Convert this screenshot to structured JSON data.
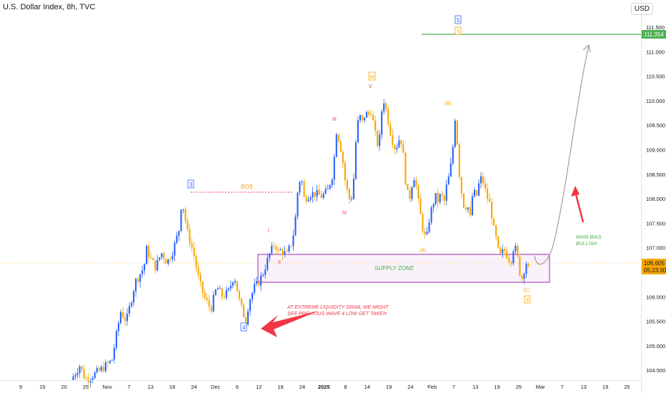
{
  "header": {
    "title": "U.S. Dollar Index, 8h, TVC",
    "currency": "USD"
  },
  "chart_data": {
    "type": "candlestick",
    "y_ticks": [
      "111.500",
      "111.000",
      "110.500",
      "110.000",
      "109.500",
      "109.000",
      "108.500",
      "108.000",
      "107.500",
      "107.000",
      "106.500",
      "106.000",
      "105.500",
      "105.000",
      "104.500"
    ],
    "ylim": [
      104.25,
      111.75
    ],
    "x_ticks": [
      "9",
      "15",
      "20",
      "25",
      "Nov",
      "7",
      "13",
      "18",
      "24",
      "Dec",
      "6",
      "12",
      "18",
      "24",
      "2025",
      "8",
      "14",
      "19",
      "24",
      "Feb",
      "7",
      "13",
      "19",
      "25",
      "Mar",
      "7",
      "13",
      "19",
      "25"
    ],
    "price_label": {
      "value": "106.605",
      "time": "05:23:30",
      "color": "#f7a600"
    },
    "target_label": {
      "value": "111.354",
      "color": "#4caf50"
    },
    "annotations": {
      "bos": "BOS",
      "supply_zone": "SUPPLY ZONE",
      "main_bias_line1": "MAIN BIAS",
      "main_bias_line2": "BULLISH",
      "liquidity_line1": "AT EXTREME LIQUIDITY GRAB, WE MIGHT",
      "liquidity_line2": "SEE PREVIOUS WAVE 4 LOW GET TAKEN"
    },
    "wave_labels": {
      "w3": "3",
      "w4": "4",
      "w5": "5",
      "Y": "Y",
      "W": "W",
      "X": "X",
      "i": "I",
      "ii": "II",
      "iii": "III",
      "iv": "IV",
      "v": "V",
      "A": "(A)",
      "B": "(B)",
      "C": "(C)"
    },
    "path": [
      [
        0,
        104.3
      ],
      [
        3,
        104.6
      ],
      [
        5,
        104.3
      ],
      [
        10,
        104.5
      ],
      [
        14,
        104.7
      ],
      [
        17,
        105.7
      ],
      [
        19,
        105.5
      ],
      [
        22,
        106.3
      ],
      [
        25,
        106.6
      ],
      [
        26,
        107.0
      ],
      [
        27,
        106.8
      ],
      [
        29,
        106.6
      ],
      [
        31,
        106.9
      ],
      [
        33,
        106.7
      ],
      [
        35,
        106.95
      ],
      [
        37,
        107.35
      ],
      [
        38,
        108.0
      ],
      [
        40,
        107.3
      ],
      [
        42,
        106.9
      ],
      [
        44,
        106.3
      ],
      [
        46,
        105.95
      ],
      [
        48,
        105.75
      ],
      [
        50,
        106.2
      ],
      [
        52,
        106.0
      ],
      [
        54,
        106.1
      ],
      [
        56,
        106.45
      ],
      [
        58,
        105.85
      ],
      [
        60,
        105.5
      ],
      [
        61,
        105.9
      ],
      [
        63,
        106.2
      ],
      [
        64,
        106.25
      ],
      [
        66,
        106.5
      ],
      [
        68,
        106.85
      ],
      [
        70,
        107.1
      ],
      [
        71,
        106.9
      ],
      [
        72,
        106.95
      ],
      [
        74,
        106.85
      ],
      [
        76,
        107.15
      ],
      [
        77,
        107.6
      ],
      [
        78,
        108.3
      ],
      [
        79,
        108.45
      ],
      [
        80,
        108.0
      ],
      [
        82,
        108.1
      ],
      [
        84,
        108.1
      ],
      [
        86,
        108.05
      ],
      [
        88,
        108.15
      ],
      [
        90,
        108.55
      ],
      [
        91,
        109.4
      ],
      [
        92,
        109.2
      ],
      [
        93,
        108.9
      ],
      [
        94,
        108.4
      ],
      [
        95,
        108.1
      ],
      [
        96,
        107.9
      ],
      [
        97,
        108.4
      ],
      [
        98,
        109.4
      ],
      [
        99,
        109.7
      ],
      [
        100,
        109.55
      ],
      [
        101,
        109.75
      ],
      [
        102,
        109.7
      ],
      [
        103,
        109.8
      ],
      [
        104,
        109.45
      ],
      [
        105,
        109.1
      ],
      [
        106,
        109.25
      ],
      [
        107,
        110.1
      ],
      [
        108,
        109.85
      ],
      [
        109,
        109.55
      ],
      [
        110,
        109.25
      ],
      [
        111,
        109.05
      ],
      [
        112,
        109.1
      ],
      [
        113,
        109.3
      ],
      [
        114,
        108.9
      ],
      [
        115,
        108.25
      ],
      [
        116,
        107.95
      ],
      [
        117,
        108.3
      ],
      [
        118,
        108.5
      ],
      [
        119,
        108.0
      ],
      [
        120,
        107.65
      ],
      [
        121,
        107.3
      ],
      [
        122,
        107.15
      ],
      [
        123,
        107.6
      ],
      [
        124,
        107.85
      ],
      [
        125,
        108.05
      ],
      [
        126,
        107.95
      ],
      [
        127,
        108.1
      ],
      [
        128,
        107.9
      ],
      [
        129,
        108.3
      ],
      [
        130,
        108.5
      ],
      [
        131,
        109.0
      ],
      [
        132,
        109.8
      ],
      [
        133,
        108.65
      ],
      [
        134,
        108.15
      ],
      [
        135,
        107.8
      ],
      [
        136,
        107.9
      ],
      [
        137,
        107.6
      ],
      [
        138,
        108.2
      ],
      [
        139,
        108.0
      ],
      [
        140,
        108.3
      ],
      [
        141,
        108.45
      ],
      [
        142,
        108.2
      ],
      [
        143,
        108.0
      ],
      [
        144,
        107.85
      ],
      [
        145,
        107.4
      ],
      [
        146,
        107.15
      ],
      [
        147,
        106.8
      ],
      [
        148,
        106.9
      ],
      [
        149,
        106.95
      ],
      [
        150,
        106.8
      ],
      [
        151,
        106.75
      ],
      [
        152,
        107.05
      ],
      [
        153,
        106.9
      ],
      [
        154,
        106.5
      ],
      [
        155,
        106.35
      ],
      [
        156,
        106.75
      ],
      [
        157,
        106.55
      ]
    ]
  }
}
